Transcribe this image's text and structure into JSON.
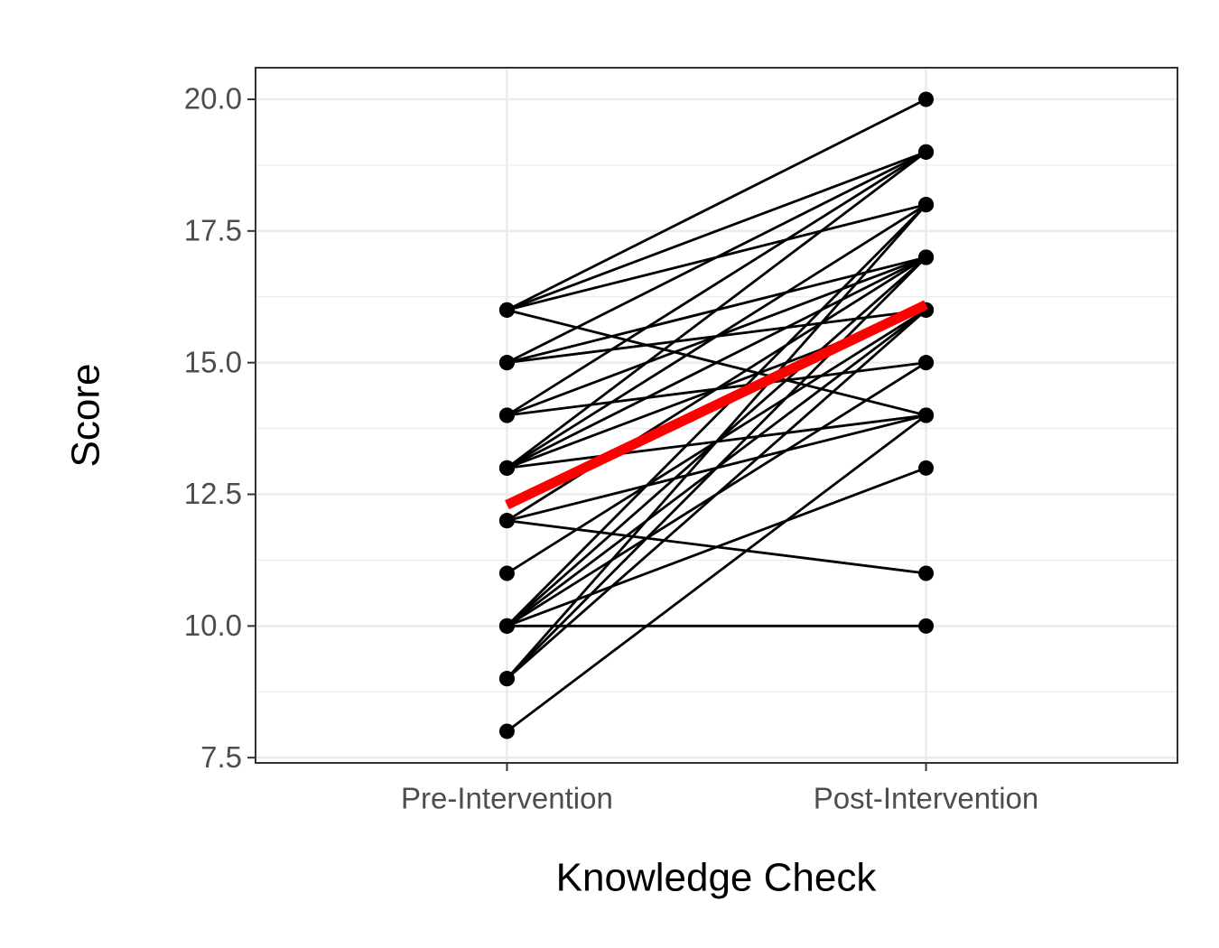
{
  "chart_data": {
    "type": "line",
    "x_label": "Knowledge Check",
    "y_label": "Score",
    "categories": [
      "Pre-Intervention",
      "Post-Intervention"
    ],
    "ylim": [
      7.4,
      20.6
    ],
    "yticks": [
      {
        "value": 7.5,
        "label": "7.5"
      },
      {
        "value": 10,
        "label": "10.0"
      },
      {
        "value": 12.5,
        "label": "12.5"
      },
      {
        "value": 15,
        "label": "15.0"
      },
      {
        "value": 17.5,
        "label": "17.5"
      },
      {
        "value": 20,
        "label": "20.0"
      }
    ],
    "grid": true,
    "line_color": "#000000",
    "series": [
      {
        "values": [
          16,
          20
        ]
      },
      {
        "values": [
          16,
          19
        ]
      },
      {
        "values": [
          16,
          18
        ]
      },
      {
        "values": [
          16,
          14
        ]
      },
      {
        "values": [
          15,
          19
        ]
      },
      {
        "values": [
          15,
          17
        ]
      },
      {
        "values": [
          15,
          16
        ]
      },
      {
        "values": [
          14,
          19
        ]
      },
      {
        "values": [
          14,
          17
        ]
      },
      {
        "values": [
          14,
          15
        ]
      },
      {
        "values": [
          13,
          19
        ]
      },
      {
        "values": [
          13,
          18
        ]
      },
      {
        "values": [
          13,
          17
        ]
      },
      {
        "values": [
          13,
          16
        ]
      },
      {
        "values": [
          13,
          14
        ]
      },
      {
        "values": [
          12,
          17
        ]
      },
      {
        "values": [
          12,
          14
        ]
      },
      {
        "values": [
          12,
          11
        ]
      },
      {
        "values": [
          11,
          16
        ]
      },
      {
        "values": [
          10,
          18
        ]
      },
      {
        "values": [
          10,
          17
        ]
      },
      {
        "values": [
          10,
          16
        ]
      },
      {
        "values": [
          10,
          15
        ]
      },
      {
        "values": [
          10,
          13
        ]
      },
      {
        "values": [
          10,
          10
        ]
      },
      {
        "values": [
          9,
          18
        ]
      },
      {
        "values": [
          9,
          17
        ]
      },
      {
        "values": [
          9,
          16
        ]
      },
      {
        "values": [
          8,
          14
        ]
      }
    ],
    "mean_line": {
      "color": "#ff0000",
      "values": [
        12.3,
        16.1
      ]
    }
  }
}
